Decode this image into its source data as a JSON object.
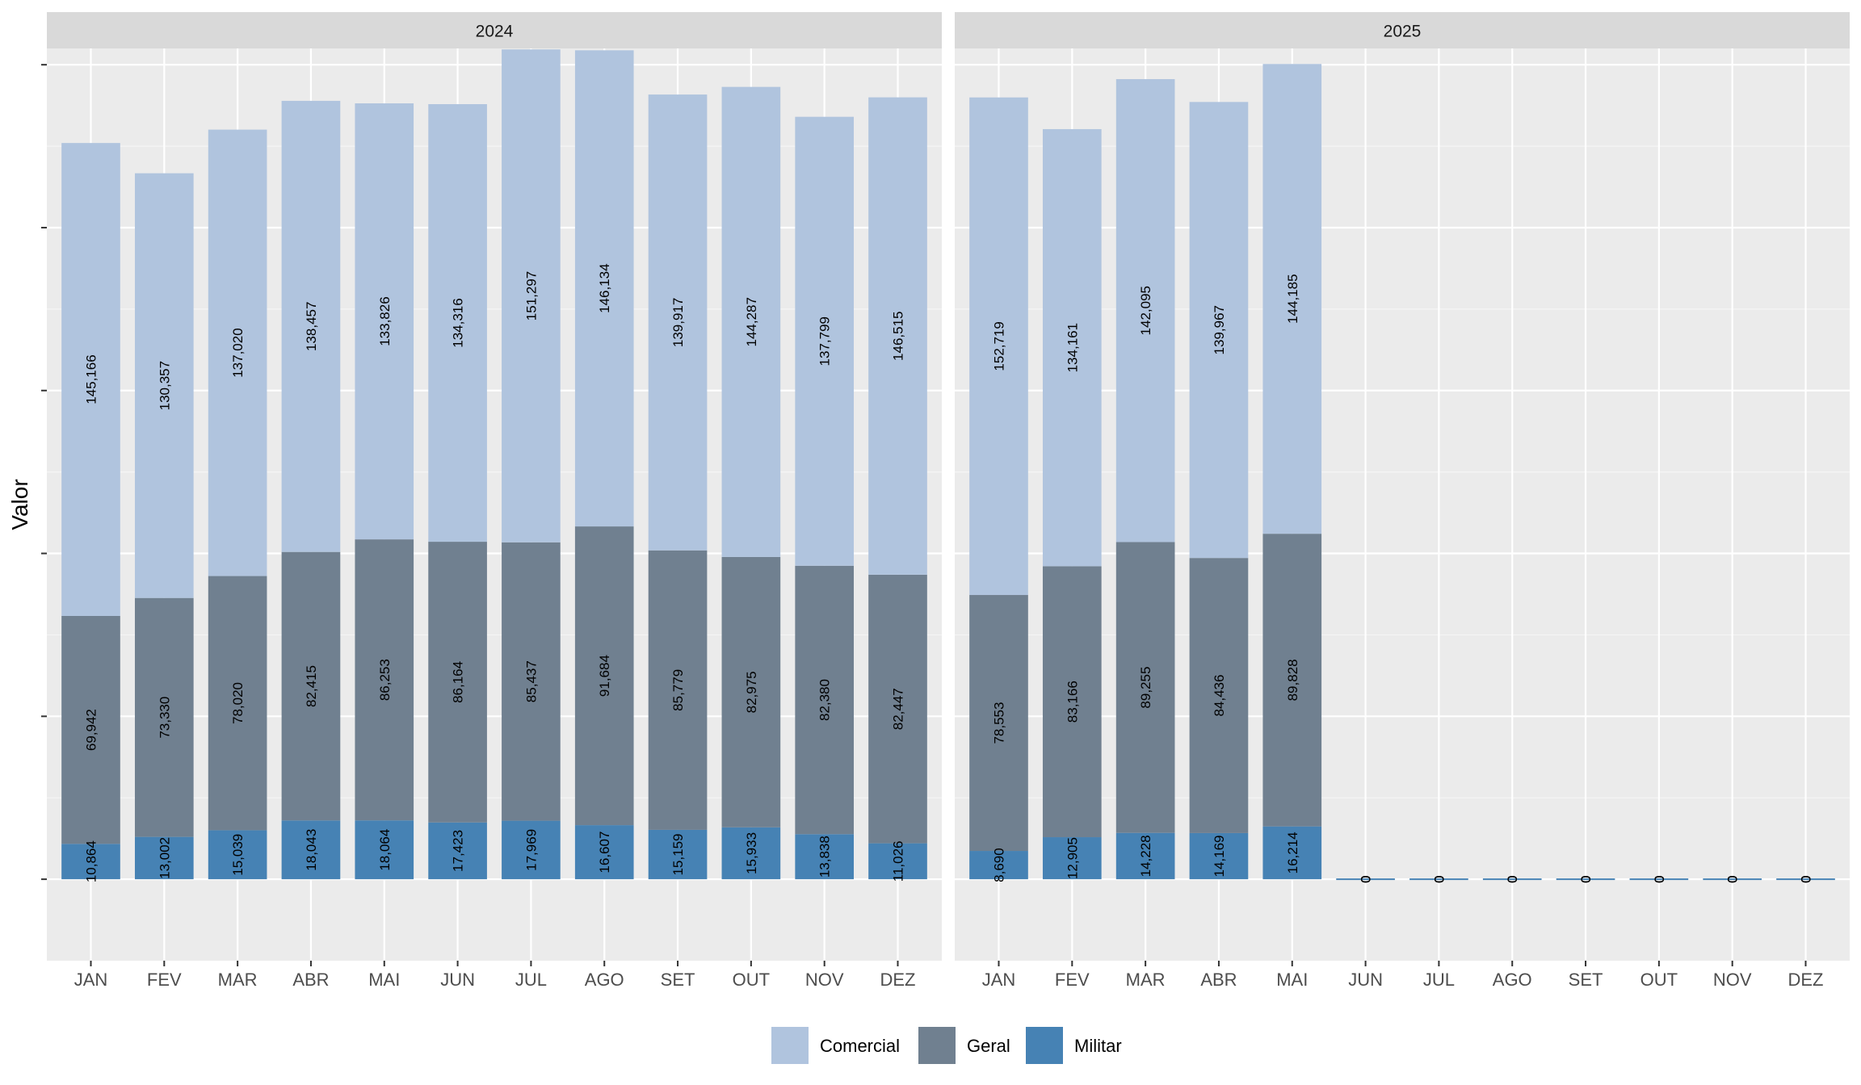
{
  "chart_data": {
    "type": "bar",
    "stacked": true,
    "facets": [
      "2024",
      "2025"
    ],
    "categories": [
      "JAN",
      "FEV",
      "MAR",
      "ABR",
      "MAI",
      "JUN",
      "JUL",
      "AGO",
      "SET",
      "OUT",
      "NOV",
      "DEZ"
    ],
    "ylabel": "Valor",
    "xlabel": "",
    "ylim": [
      -25000,
      255000
    ],
    "y_breaks": [
      0,
      50000,
      100000,
      150000,
      200000,
      250000
    ],
    "y_tick_labels_shown": false,
    "grid": true,
    "legend_position": "bottom",
    "series": [
      {
        "name": "Militar",
        "color": "#4682B4",
        "values": {
          "2024": [
            10864,
            13002,
            15039,
            18043,
            18064,
            17423,
            17969,
            16607,
            15159,
            15933,
            13838,
            11026
          ],
          "2025": [
            8690,
            12905,
            14228,
            14169,
            16214,
            0,
            0,
            0,
            0,
            0,
            0,
            0
          ]
        },
        "labels": {
          "2024": [
            "10,864",
            "13,002",
            "15,039",
            "18,043",
            "18,064",
            "17,423",
            "17,969",
            "16,607",
            "15,159",
            "15,933",
            "13,838",
            "11,026"
          ],
          "2025": [
            "8,690",
            "12,905",
            "14,228",
            "14,169",
            "16,214",
            "0",
            "0",
            "0",
            "0",
            "0",
            "0",
            "0"
          ]
        }
      },
      {
        "name": "Geral",
        "color": "#708090",
        "values": {
          "2024": [
            69942,
            73330,
            78020,
            82415,
            86253,
            86164,
            85437,
            91684,
            85779,
            82975,
            82380,
            82447
          ],
          "2025": [
            78553,
            83166,
            89255,
            84436,
            89828,
            0,
            0,
            0,
            0,
            0,
            0,
            0
          ]
        },
        "labels": {
          "2024": [
            "69,942",
            "73,330",
            "78,020",
            "82,415",
            "86,253",
            "86,164",
            "85,437",
            "91,684",
            "85,779",
            "82,975",
            "82,380",
            "82,447"
          ],
          "2025": [
            "78,553",
            "83,166",
            "89,255",
            "84,436",
            "89,828",
            "0",
            "0",
            "0",
            "0",
            "0",
            "0",
            "0"
          ]
        }
      },
      {
        "name": "Comercial",
        "color": "#B0C4DE",
        "values": {
          "2024": [
            145166,
            130357,
            137020,
            138457,
            133826,
            134316,
            151297,
            146134,
            139917,
            144287,
            137799,
            146515
          ],
          "2025": [
            152719,
            134161,
            142095,
            139967,
            144185,
            0,
            0,
            0,
            0,
            0,
            0,
            0
          ]
        },
        "labels": {
          "2024": [
            "145,166",
            "130,357",
            "137,020",
            "138,457",
            "133,826",
            "134,316",
            "151,297",
            "146,134",
            "139,917",
            "144,287",
            "137,799",
            "146,515"
          ],
          "2025": [
            "152,719",
            "134,161",
            "142,095",
            "139,967",
            "144,185",
            "0",
            "0",
            "0",
            "0",
            "0",
            "0",
            "0"
          ]
        }
      }
    ],
    "legend": [
      "Comercial",
      "Geral",
      "Militar"
    ]
  },
  "colors": {
    "panel_background": "#EBEBEB",
    "strip_background": "#D9D9D9",
    "grid_major": "#FFFFFF",
    "grid_minor": "#F5F5F5"
  }
}
